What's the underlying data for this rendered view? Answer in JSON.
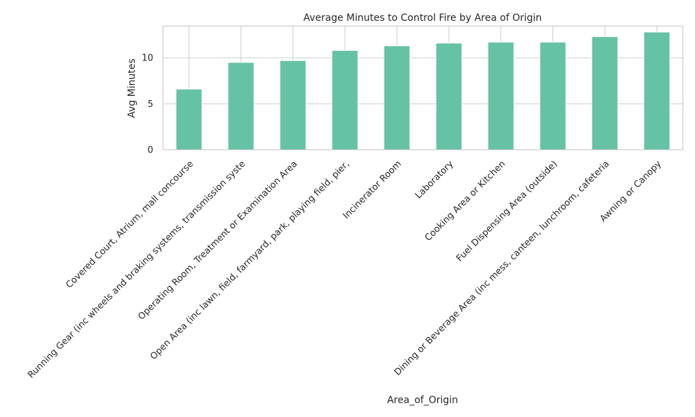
{
  "chart_data": {
    "type": "bar",
    "title": "Average Minutes to Control Fire by Area of Origin",
    "xlabel": "Area_of_Origin",
    "ylabel": "Avg Minutes",
    "categories": [
      "Covered Court, Atrium, mall concourse",
      "Running Gear (inc wheels and braking systems, transmission syste",
      "Operating Room, Treatment or Examination Area",
      "Open Area (inc lawn, field, farmyard, park, playing field, pier,",
      "Incinerator Room",
      "Laboratory",
      "Cooking Area or Kitchen",
      "Fuel Dispensing Area (outside)",
      "Dining or Beverage Area (inc mess, canteen, lunchroom, cafeteria",
      "Awning or Canopy"
    ],
    "values": [
      6.6,
      9.5,
      9.7,
      10.8,
      11.3,
      11.6,
      11.7,
      11.7,
      12.3,
      12.8
    ],
    "yticks": [
      0,
      5,
      10
    ],
    "ylim": [
      0,
      13.45
    ],
    "grid": true,
    "colors": {
      "bar": "#66c2a5"
    }
  }
}
